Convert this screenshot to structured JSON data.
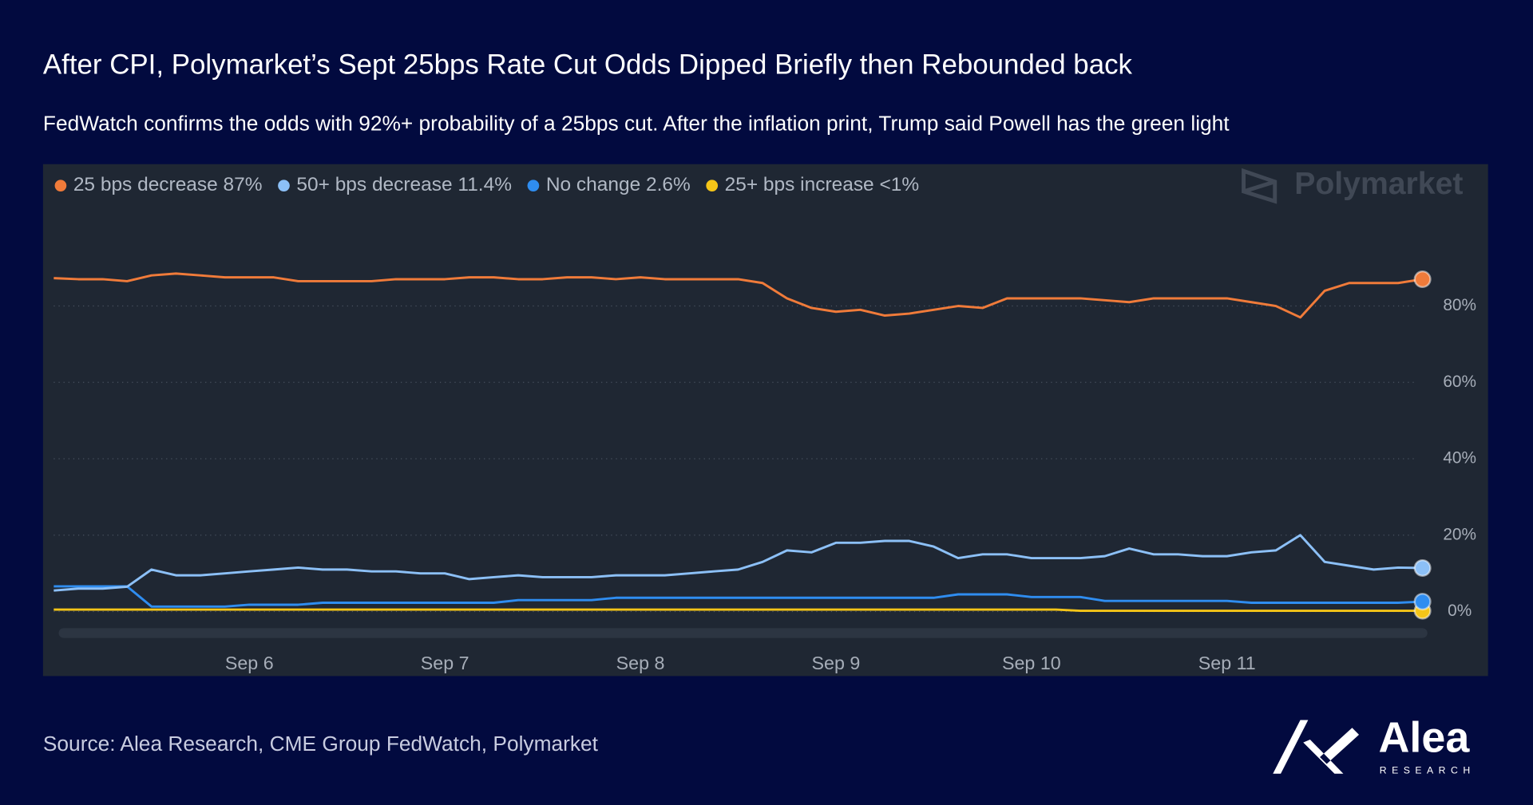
{
  "chart_data": {
    "type": "line",
    "title": "After CPI, Polymarket’s Sept 25bps Rate Cut Odds Dipped Briefly then Rebounded back",
    "subtitle": "FedWatch confirms the odds with 92%+ probability of a 25bps cut. After the inflation print, Trump said Powell has the green light",
    "source": "Source: Alea Research, CME Group FedWatch, Polymarket",
    "watermark": "Polymarket",
    "branding": {
      "name": "Alea",
      "tagline": "RESEARCH"
    },
    "x": [
      5,
      5.125,
      5.25,
      5.375,
      5.5,
      5.625,
      5.75,
      5.875,
      6,
      6.125,
      6.25,
      6.375,
      6.5,
      6.625,
      6.75,
      6.875,
      7,
      7.125,
      7.25,
      7.375,
      7.5,
      7.625,
      7.75,
      7.875,
      8,
      8.125,
      8.25,
      8.375,
      8.5,
      8.625,
      8.75,
      8.875,
      9,
      9.125,
      9.25,
      9.375,
      9.5,
      9.625,
      9.75,
      9.875,
      10,
      10.125,
      10.25,
      10.375,
      10.5,
      10.625,
      10.75,
      10.875,
      11,
      11.125,
      11.25,
      11.375,
      11.5,
      11.625,
      11.75,
      11.875,
      12
    ],
    "xlim": [
      5,
      12
    ],
    "xticks": [
      {
        "value": 6,
        "label": "Sep 6"
      },
      {
        "value": 7,
        "label": "Sep 7"
      },
      {
        "value": 8,
        "label": "Sep 8"
      },
      {
        "value": 9,
        "label": "Sep 9"
      },
      {
        "value": 10,
        "label": "Sep 10"
      },
      {
        "value": 11,
        "label": "Sep 11"
      }
    ],
    "ylim": [
      0,
      100
    ],
    "yticks": [
      {
        "value": 0,
        "label": "0%"
      },
      {
        "value": 20,
        "label": "20%"
      },
      {
        "value": 40,
        "label": "40%"
      },
      {
        "value": 60,
        "label": "60%"
      },
      {
        "value": 80,
        "label": "80%"
      }
    ],
    "grid": true,
    "legend": "top-left",
    "series": [
      {
        "name": "25 bps decrease 87%",
        "color": "#f07b3a",
        "values": [
          87.3,
          87,
          87,
          86.5,
          88,
          88.5,
          88,
          87.5,
          87.5,
          87.5,
          86.5,
          86.5,
          86.5,
          86.5,
          87,
          87,
          87,
          87.5,
          87.5,
          87,
          87,
          87.5,
          87.5,
          87,
          87.5,
          87,
          87,
          87,
          87,
          86,
          82,
          79.5,
          78.5,
          79,
          77.5,
          78,
          79,
          80,
          79.5,
          82,
          82,
          82,
          82,
          81.5,
          81,
          82,
          82,
          82,
          82,
          81,
          80,
          77,
          84,
          86,
          86,
          86,
          87
        ]
      },
      {
        "name": "50+ bps decrease 11.4%",
        "color": "#8cc0f7",
        "values": [
          5.5,
          6,
          6,
          6.5,
          11,
          9.5,
          9.5,
          10,
          10.5,
          11,
          11.5,
          11,
          11,
          10.5,
          10.5,
          10,
          10,
          8.5,
          9,
          9.5,
          9,
          9,
          9,
          9.5,
          9.5,
          9.5,
          10,
          10.5,
          11,
          13,
          16,
          15.5,
          18,
          18,
          18.5,
          18.5,
          17,
          14,
          15,
          15,
          14,
          14,
          14,
          14.5,
          16.5,
          15,
          15,
          14.5,
          14.5,
          15.5,
          16,
          20,
          13,
          12,
          11,
          11.5,
          11.4
        ]
      },
      {
        "name": "No change 2.6%",
        "color": "#2f8df0",
        "values": [
          6.6,
          6.6,
          6.6,
          6.6,
          1.3,
          1.3,
          1.3,
          1.3,
          1.8,
          1.8,
          1.8,
          2.3,
          2.3,
          2.3,
          2.3,
          2.3,
          2.3,
          2.3,
          2.3,
          3,
          3,
          3,
          3,
          3.6,
          3.6,
          3.6,
          3.6,
          3.6,
          3.6,
          3.6,
          3.6,
          3.6,
          3.6,
          3.6,
          3.6,
          3.6,
          3.6,
          4.5,
          4.5,
          4.5,
          3.8,
          3.8,
          3.8,
          2.8,
          2.8,
          2.8,
          2.8,
          2.8,
          2.8,
          2.3,
          2.3,
          2.3,
          2.3,
          2.3,
          2.3,
          2.3,
          2.6
        ]
      },
      {
        "name": "25+ bps increase <1%",
        "color": "#f5c518",
        "values": [
          0.5,
          0.5,
          0.5,
          0.5,
          0.5,
          0.5,
          0.5,
          0.5,
          0.5,
          0.5,
          0.5,
          0.5,
          0.5,
          0.5,
          0.5,
          0.5,
          0.5,
          0.5,
          0.5,
          0.5,
          0.5,
          0.5,
          0.5,
          0.5,
          0.5,
          0.5,
          0.5,
          0.5,
          0.5,
          0.5,
          0.5,
          0.5,
          0.5,
          0.5,
          0.5,
          0.5,
          0.5,
          0.5,
          0.5,
          0.5,
          0.5,
          0.5,
          0.2,
          0.2,
          0.2,
          0.2,
          0.2,
          0.2,
          0.2,
          0.2,
          0.2,
          0.2,
          0.2,
          0.2,
          0.2,
          0.2,
          0.2
        ]
      }
    ]
  }
}
